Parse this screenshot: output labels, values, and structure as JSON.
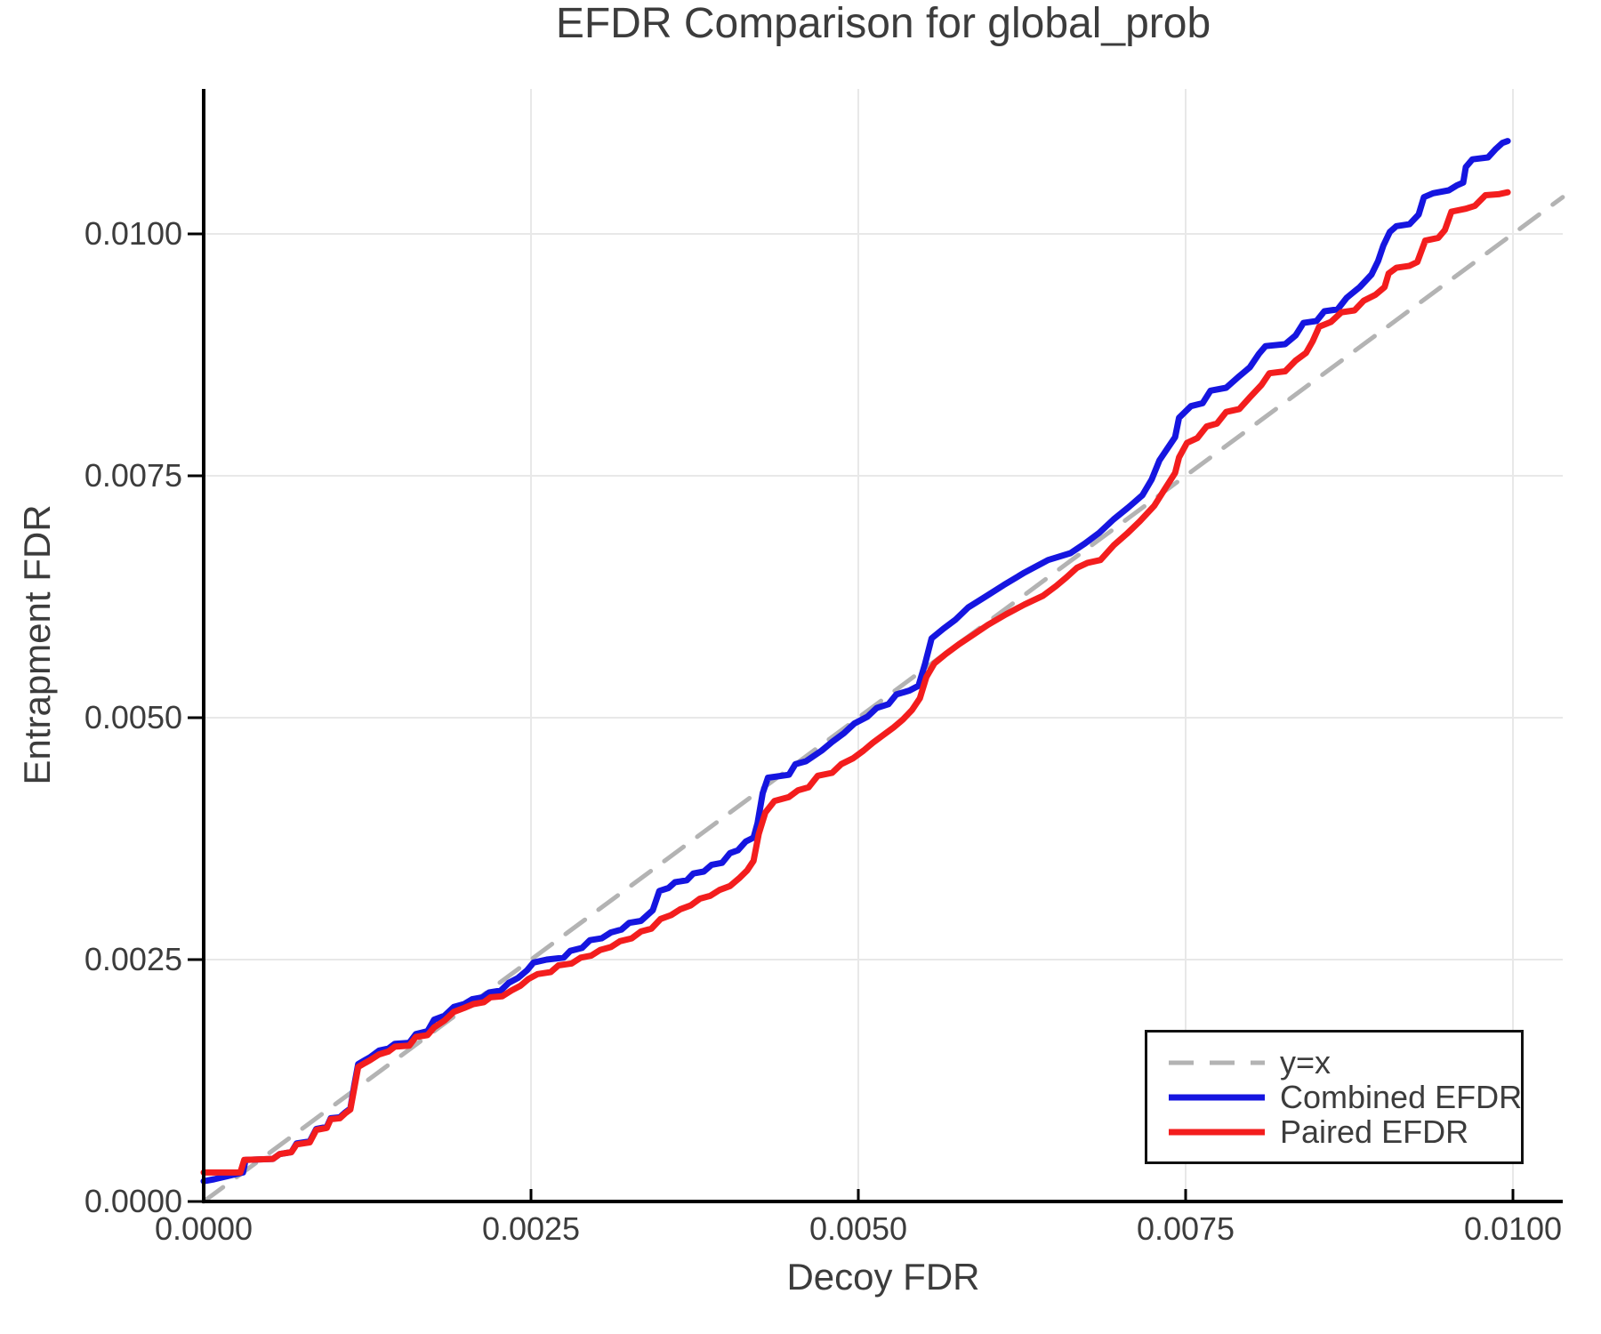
{
  "title": "EFDR Comparison for global_prob",
  "x_axis": {
    "label": "Decoy FDR",
    "tick_values": [
      0.0,
      0.0025,
      0.005,
      0.0075,
      0.01
    ],
    "tick_labels": [
      "0.0000",
      "0.0025",
      "0.0050",
      "0.0075",
      "0.0100"
    ]
  },
  "y_axis": {
    "label": "Entrapment FDR",
    "tick_values": [
      0.0,
      0.0025,
      0.005,
      0.0075,
      0.01
    ],
    "tick_labels": [
      "0.0000",
      "0.0025",
      "0.0050",
      "0.0075",
      "0.0100"
    ]
  },
  "legend": {
    "items": [
      {
        "label": "y=x",
        "color": "#b3b3b3",
        "style": "dashed"
      },
      {
        "label": "Combined EFDR",
        "color": "#1515e0",
        "style": "solid"
      },
      {
        "label": "Paired EFDR",
        "color": "#f31d1d",
        "style": "solid"
      }
    ]
  },
  "colors": {
    "grid": "#e8e8e8",
    "spine": "#000000",
    "text": "#3c3c3c",
    "identity": "#b3b3b3",
    "combined": "#1515e0",
    "paired": "#f31d1d"
  },
  "chart_data": {
    "type": "line",
    "title": "EFDR Comparison for global_prob",
    "xlabel": "Decoy FDR",
    "ylabel": "Entrapment FDR",
    "xlim": [
      0.0,
      0.0104
    ],
    "ylim": [
      0.0,
      0.0115
    ],
    "grid": true,
    "legend_position": "lower right",
    "series": [
      {
        "name": "y=x",
        "color": "#b3b3b3",
        "dash": true,
        "points": [
          [
            0.0,
            0.0
          ],
          [
            0.01038,
            0.01038
          ]
        ]
      },
      {
        "name": "Combined EFDR",
        "color": "#1515e0",
        "dash": false,
        "points": [
          [
            0.0,
            0.00021
          ],
          [
            8e-05,
            0.00023
          ],
          [
            0.0003,
            0.0003
          ],
          [
            0.00032,
            0.00043
          ],
          [
            0.00053,
            0.00044
          ],
          [
            0.00058,
            0.00049
          ],
          [
            0.00067,
            0.00051
          ],
          [
            0.00071,
            0.0006
          ],
          [
            0.00081,
            0.00062
          ],
          [
            0.00086,
            0.00075
          ],
          [
            0.00094,
            0.00077
          ],
          [
            0.00097,
            0.00086
          ],
          [
            0.00104,
            0.00087
          ],
          [
            0.00108,
            0.00092
          ],
          [
            0.00112,
            0.00096
          ],
          [
            0.00115,
            0.0012
          ],
          [
            0.00118,
            0.00142
          ],
          [
            0.00123,
            0.00146
          ],
          [
            0.00127,
            0.00149
          ],
          [
            0.00134,
            0.00156
          ],
          [
            0.00141,
            0.00158
          ],
          [
            0.00146,
            0.00163
          ],
          [
            0.00157,
            0.00164
          ],
          [
            0.00162,
            0.00173
          ],
          [
            0.00171,
            0.00176
          ],
          [
            0.00176,
            0.00188
          ],
          [
            0.00184,
            0.00192
          ],
          [
            0.00191,
            0.00201
          ],
          [
            0.00199,
            0.00204
          ],
          [
            0.00205,
            0.00209
          ],
          [
            0.00213,
            0.00211
          ],
          [
            0.00218,
            0.00216
          ],
          [
            0.00227,
            0.00218
          ],
          [
            0.00233,
            0.00226
          ],
          [
            0.0024,
            0.00231
          ],
          [
            0.00247,
            0.00239
          ],
          [
            0.00252,
            0.00247
          ],
          [
            0.00262,
            0.0025
          ],
          [
            0.00275,
            0.00252
          ],
          [
            0.0028,
            0.00259
          ],
          [
            0.00289,
            0.00262
          ],
          [
            0.00295,
            0.0027
          ],
          [
            0.00304,
            0.00272
          ],
          [
            0.00311,
            0.00278
          ],
          [
            0.00319,
            0.00281
          ],
          [
            0.00325,
            0.00288
          ],
          [
            0.00334,
            0.0029
          ],
          [
            0.00343,
            0.00301
          ],
          [
            0.00348,
            0.00321
          ],
          [
            0.00355,
            0.00324
          ],
          [
            0.0036,
            0.0033
          ],
          [
            0.00369,
            0.00332
          ],
          [
            0.00374,
            0.00339
          ],
          [
            0.00382,
            0.00341
          ],
          [
            0.00388,
            0.00348
          ],
          [
            0.00396,
            0.0035
          ],
          [
            0.00402,
            0.0036
          ],
          [
            0.00408,
            0.00363
          ],
          [
            0.00414,
            0.00372
          ],
          [
            0.0042,
            0.00376
          ],
          [
            0.00423,
            0.00391
          ],
          [
            0.00427,
            0.00422
          ],
          [
            0.00431,
            0.00438
          ],
          [
            0.00447,
            0.00441
          ],
          [
            0.00452,
            0.00452
          ],
          [
            0.0046,
            0.00455
          ],
          [
            0.00472,
            0.00466
          ],
          [
            0.0048,
            0.00475
          ],
          [
            0.00489,
            0.00484
          ],
          [
            0.00497,
            0.00494
          ],
          [
            0.00507,
            0.00501
          ],
          [
            0.00514,
            0.0051
          ],
          [
            0.00523,
            0.00514
          ],
          [
            0.00529,
            0.00524
          ],
          [
            0.00539,
            0.00528
          ],
          [
            0.00546,
            0.00533
          ],
          [
            0.00551,
            0.00556
          ],
          [
            0.00556,
            0.00582
          ],
          [
            0.00565,
            0.00592
          ],
          [
            0.00574,
            0.00601
          ],
          [
            0.00584,
            0.00614
          ],
          [
            0.00597,
            0.00625
          ],
          [
            0.00611,
            0.00637
          ],
          [
            0.00627,
            0.0065
          ],
          [
            0.00645,
            0.00663
          ],
          [
            0.00662,
            0.0067
          ],
          [
            0.00673,
            0.0068
          ],
          [
            0.00684,
            0.00691
          ],
          [
            0.00695,
            0.00705
          ],
          [
            0.00706,
            0.00717
          ],
          [
            0.00717,
            0.0073
          ],
          [
            0.00724,
            0.00746
          ],
          [
            0.0073,
            0.00766
          ],
          [
            0.00736,
            0.00778
          ],
          [
            0.00742,
            0.0079
          ],
          [
            0.00745,
            0.0081
          ],
          [
            0.00754,
            0.00822
          ],
          [
            0.00763,
            0.00825
          ],
          [
            0.00769,
            0.00838
          ],
          [
            0.00781,
            0.00841
          ],
          [
            0.00791,
            0.00853
          ],
          [
            0.00799,
            0.00862
          ],
          [
            0.00806,
            0.00876
          ],
          [
            0.00811,
            0.00884
          ],
          [
            0.00826,
            0.00886
          ],
          [
            0.00834,
            0.00895
          ],
          [
            0.0084,
            0.00908
          ],
          [
            0.0085,
            0.0091
          ],
          [
            0.00856,
            0.0092
          ],
          [
            0.00866,
            0.00922
          ],
          [
            0.00873,
            0.00934
          ],
          [
            0.00883,
            0.00945
          ],
          [
            0.00892,
            0.00958
          ],
          [
            0.00897,
            0.00972
          ],
          [
            0.00901,
            0.00988
          ],
          [
            0.00906,
            0.01002
          ],
          [
            0.00911,
            0.01008
          ],
          [
            0.00921,
            0.0101
          ],
          [
            0.00928,
            0.0102
          ],
          [
            0.00932,
            0.01038
          ],
          [
            0.00939,
            0.01042
          ],
          [
            0.00951,
            0.01045
          ],
          [
            0.00957,
            0.0105
          ],
          [
            0.00962,
            0.01053
          ],
          [
            0.00964,
            0.01069
          ],
          [
            0.00969,
            0.01077
          ],
          [
            0.00981,
            0.01079
          ],
          [
            0.00987,
            0.01088
          ],
          [
            0.00992,
            0.01094
          ],
          [
            0.00996,
            0.01096
          ]
        ]
      },
      {
        "name": "Paired EFDR",
        "color": "#f31d1d",
        "dash": false,
        "points": [
          [
            0.0,
            0.0003
          ],
          [
            0.00028,
            0.0003
          ],
          [
            0.00031,
            0.00043
          ],
          [
            0.00053,
            0.00044
          ],
          [
            0.00058,
            0.00049
          ],
          [
            0.00067,
            0.00051
          ],
          [
            0.00071,
            0.00059
          ],
          [
            0.00081,
            0.00061
          ],
          [
            0.00086,
            0.00074
          ],
          [
            0.00094,
            0.00076
          ],
          [
            0.00097,
            0.00085
          ],
          [
            0.00104,
            0.00086
          ],
          [
            0.00108,
            0.00091
          ],
          [
            0.00112,
            0.00095
          ],
          [
            0.00115,
            0.00117
          ],
          [
            0.00118,
            0.00139
          ],
          [
            0.00123,
            0.00143
          ],
          [
            0.00127,
            0.00146
          ],
          [
            0.00134,
            0.00152
          ],
          [
            0.00141,
            0.00155
          ],
          [
            0.00146,
            0.0016
          ],
          [
            0.00157,
            0.00161
          ],
          [
            0.00162,
            0.0017
          ],
          [
            0.00171,
            0.00172
          ],
          [
            0.00176,
            0.0018
          ],
          [
            0.00184,
            0.00187
          ],
          [
            0.00191,
            0.00196
          ],
          [
            0.00199,
            0.002
          ],
          [
            0.00206,
            0.00204
          ],
          [
            0.00214,
            0.00206
          ],
          [
            0.00219,
            0.00211
          ],
          [
            0.00228,
            0.00212
          ],
          [
            0.00235,
            0.00218
          ],
          [
            0.00242,
            0.00223
          ],
          [
            0.00248,
            0.0023
          ],
          [
            0.00255,
            0.00235
          ],
          [
            0.00265,
            0.00237
          ],
          [
            0.00271,
            0.00244
          ],
          [
            0.00281,
            0.00246
          ],
          [
            0.00288,
            0.00252
          ],
          [
            0.00296,
            0.00254
          ],
          [
            0.00303,
            0.0026
          ],
          [
            0.00311,
            0.00263
          ],
          [
            0.00318,
            0.00269
          ],
          [
            0.00327,
            0.00272
          ],
          [
            0.00334,
            0.00279
          ],
          [
            0.00342,
            0.00282
          ],
          [
            0.00349,
            0.00292
          ],
          [
            0.00357,
            0.00296
          ],
          [
            0.00364,
            0.00302
          ],
          [
            0.00372,
            0.00306
          ],
          [
            0.00379,
            0.00313
          ],
          [
            0.00387,
            0.00316
          ],
          [
            0.00394,
            0.00322
          ],
          [
            0.00402,
            0.00326
          ],
          [
            0.00409,
            0.00334
          ],
          [
            0.00415,
            0.00342
          ],
          [
            0.0042,
            0.00352
          ],
          [
            0.00424,
            0.0038
          ],
          [
            0.00429,
            0.00402
          ],
          [
            0.00436,
            0.00414
          ],
          [
            0.00447,
            0.00418
          ],
          [
            0.00454,
            0.00425
          ],
          [
            0.00462,
            0.00428
          ],
          [
            0.00469,
            0.0044
          ],
          [
            0.0048,
            0.00443
          ],
          [
            0.00487,
            0.00452
          ],
          [
            0.00496,
            0.00458
          ],
          [
            0.00504,
            0.00466
          ],
          [
            0.00511,
            0.00474
          ],
          [
            0.00519,
            0.00482
          ],
          [
            0.00527,
            0.0049
          ],
          [
            0.00534,
            0.00498
          ],
          [
            0.00541,
            0.00508
          ],
          [
            0.00547,
            0.0052
          ],
          [
            0.00552,
            0.00542
          ],
          [
            0.00558,
            0.00556
          ],
          [
            0.00567,
            0.00566
          ],
          [
            0.00577,
            0.00576
          ],
          [
            0.00587,
            0.00585
          ],
          [
            0.00599,
            0.00596
          ],
          [
            0.00613,
            0.00607
          ],
          [
            0.00627,
            0.00617
          ],
          [
            0.00641,
            0.00626
          ],
          [
            0.00651,
            0.00636
          ],
          [
            0.00659,
            0.00645
          ],
          [
            0.00667,
            0.00655
          ],
          [
            0.00675,
            0.0066
          ],
          [
            0.00685,
            0.00663
          ],
          [
            0.00695,
            0.00678
          ],
          [
            0.00705,
            0.0069
          ],
          [
            0.00715,
            0.00703
          ],
          [
            0.00726,
            0.00719
          ],
          [
            0.00734,
            0.00736
          ],
          [
            0.00742,
            0.00753
          ],
          [
            0.00745,
            0.00769
          ],
          [
            0.00751,
            0.00784
          ],
          [
            0.00759,
            0.00789
          ],
          [
            0.00766,
            0.00801
          ],
          [
            0.00774,
            0.00804
          ],
          [
            0.00781,
            0.00816
          ],
          [
            0.00791,
            0.00819
          ],
          [
            0.00799,
            0.00831
          ],
          [
            0.00808,
            0.00844
          ],
          [
            0.00814,
            0.00856
          ],
          [
            0.00826,
            0.00858
          ],
          [
            0.00834,
            0.00869
          ],
          [
            0.00842,
            0.00877
          ],
          [
            0.00847,
            0.00889
          ],
          [
            0.00852,
            0.00904
          ],
          [
            0.00861,
            0.00909
          ],
          [
            0.00869,
            0.00919
          ],
          [
            0.00879,
            0.00921
          ],
          [
            0.00886,
            0.00931
          ],
          [
            0.00895,
            0.00937
          ],
          [
            0.00902,
            0.00945
          ],
          [
            0.00905,
            0.00959
          ],
          [
            0.00911,
            0.00965
          ],
          [
            0.00921,
            0.00967
          ],
          [
            0.00927,
            0.00971
          ],
          [
            0.00933,
            0.00993
          ],
          [
            0.00943,
            0.00996
          ],
          [
            0.00948,
            0.01004
          ],
          [
            0.00953,
            0.01023
          ],
          [
            0.00964,
            0.01026
          ],
          [
            0.00971,
            0.01029
          ],
          [
            0.00979,
            0.0104
          ],
          [
            0.00989,
            0.01041
          ],
          [
            0.00996,
            0.01043
          ]
        ]
      }
    ]
  }
}
